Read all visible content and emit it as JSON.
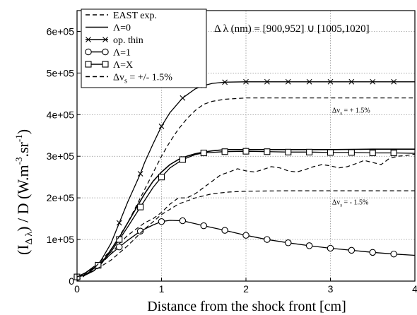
{
  "chart_data": {
    "type": "line",
    "xlabel": "Distance from the shock front [cm]",
    "ylabel": {
      "main": "(I",
      "sub": "Δ λ",
      "mid": ") / D   (W.m",
      "sup1": "-3",
      "mid2": ".sr",
      "sup2": "-1",
      "end": ")"
    },
    "xlim": [
      0,
      4
    ],
    "ylim": [
      0,
      650000
    ],
    "x_ticks": [
      0,
      1,
      2,
      3,
      4
    ],
    "x_tick_labels": [
      "0",
      "1",
      "2",
      "3",
      "4"
    ],
    "y_ticks": [
      0,
      100000,
      200000,
      300000,
      400000,
      500000,
      600000
    ],
    "y_tick_labels": [
      "0",
      "1e+05",
      "2e+05",
      "3e+05",
      "4e+05",
      "5e+05",
      "6e+05"
    ],
    "grid": true,
    "legend_position": "top-left",
    "wavelength_annotation": {
      "prefix": "Δ λ (nm) = [900,952] ∪ [1005,1020]"
    },
    "band_annotations": [
      {
        "text": "Δv",
        "sub": "s",
        "rest": " = + 1.5%",
        "x": 3.02,
        "y": 405000
      },
      {
        "text": "Δv",
        "sub": "s",
        "rest": " = - 1.5%",
        "x": 3.02,
        "y": 184000
      }
    ],
    "legend": [
      {
        "label": "EAST exp.",
        "style": "dash",
        "marker": "none"
      },
      {
        "label": "Λ=0",
        "style": "solid",
        "marker": "none"
      },
      {
        "label": "op. thin",
        "style": "solid",
        "marker": "x"
      },
      {
        "label": "Λ=1",
        "style": "solid",
        "marker": "circle"
      },
      {
        "label": "Λ=X",
        "style": "solid",
        "marker": "square"
      },
      {
        "label": "Δv",
        "label_sub": "s",
        "label_rest": " =  +/-  1.5%",
        "style": "dash",
        "marker": "none"
      }
    ],
    "series": [
      {
        "name": "EAST exp.",
        "style": "dash",
        "width": 1.2,
        "points": [
          [
            0,
            0
          ],
          [
            0.1,
            15000
          ],
          [
            0.2,
            30000
          ],
          [
            0.3,
            45000
          ],
          [
            0.4,
            65000
          ],
          [
            0.5,
            90000
          ],
          [
            0.6,
            110000
          ],
          [
            0.7,
            125000
          ],
          [
            0.8,
            140000
          ],
          [
            0.9,
            150000
          ],
          [
            1.0,
            165000
          ],
          [
            1.1,
            185000
          ],
          [
            1.2,
            200000
          ],
          [
            1.3,
            200000
          ],
          [
            1.4,
            210000
          ],
          [
            1.5,
            225000
          ],
          [
            1.6,
            240000
          ],
          [
            1.7,
            255000
          ],
          [
            1.8,
            262000
          ],
          [
            1.9,
            270000
          ],
          [
            2.0,
            265000
          ],
          [
            2.1,
            262000
          ],
          [
            2.2,
            268000
          ],
          [
            2.3,
            275000
          ],
          [
            2.4,
            272000
          ],
          [
            2.5,
            265000
          ],
          [
            2.6,
            262000
          ],
          [
            2.7,
            268000
          ],
          [
            2.8,
            275000
          ],
          [
            2.9,
            280000
          ],
          [
            3.0,
            277000
          ],
          [
            3.1,
            272000
          ],
          [
            3.2,
            275000
          ],
          [
            3.3,
            282000
          ],
          [
            3.4,
            290000
          ],
          [
            3.5,
            285000
          ],
          [
            3.6,
            280000
          ],
          [
            3.7,
            295000
          ],
          [
            3.8,
            300000
          ],
          [
            3.9,
            302000
          ],
          [
            4.0,
            305000
          ]
        ]
      },
      {
        "name": "Λ=0",
        "style": "solid",
        "width": 1.6,
        "marker": "none",
        "points": [
          [
            0,
            10000
          ],
          [
            0.1,
            15000
          ],
          [
            0.2,
            25000
          ],
          [
            0.3,
            45000
          ],
          [
            0.4,
            75000
          ],
          [
            0.5,
            105000
          ],
          [
            0.6,
            140000
          ],
          [
            0.7,
            175000
          ],
          [
            0.8,
            210000
          ],
          [
            0.9,
            240000
          ],
          [
            1.0,
            262000
          ],
          [
            1.1,
            280000
          ],
          [
            1.2,
            292000
          ],
          [
            1.3,
            300000
          ],
          [
            1.4,
            306000
          ],
          [
            1.5,
            310000
          ],
          [
            1.6,
            313000
          ],
          [
            1.7,
            315000
          ],
          [
            1.8,
            316000
          ],
          [
            2.0,
            316000
          ],
          [
            2.5,
            316000
          ],
          [
            3.0,
            316000
          ],
          [
            3.5,
            317000
          ],
          [
            4.0,
            317000
          ]
        ]
      },
      {
        "name": "op. thin",
        "style": "solid",
        "width": 1.3,
        "marker": "x",
        "marker_every": 0.25,
        "points": [
          [
            0,
            10000
          ],
          [
            0.1,
            20000
          ],
          [
            0.2,
            35000
          ],
          [
            0.25,
            40000
          ],
          [
            0.3,
            55000
          ],
          [
            0.4,
            90000
          ],
          [
            0.5,
            140000
          ],
          [
            0.6,
            190000
          ],
          [
            0.7,
            235000
          ],
          [
            0.75,
            258000
          ],
          [
            0.8,
            285000
          ],
          [
            0.9,
            330000
          ],
          [
            1.0,
            372000
          ],
          [
            1.1,
            405000
          ],
          [
            1.25,
            440000
          ],
          [
            1.4,
            462000
          ],
          [
            1.5,
            470000
          ],
          [
            1.6,
            475000
          ],
          [
            1.75,
            478000
          ],
          [
            2.0,
            479000
          ],
          [
            2.5,
            479000
          ],
          [
            3.0,
            479000
          ],
          [
            3.5,
            479000
          ],
          [
            4.0,
            479000
          ]
        ]
      },
      {
        "name": "Λ=1",
        "style": "solid",
        "width": 1.3,
        "marker": "circle",
        "marker_every": 0.25,
        "points": [
          [
            0,
            10000
          ],
          [
            0.1,
            20000
          ],
          [
            0.25,
            38000
          ],
          [
            0.4,
            65000
          ],
          [
            0.5,
            82000
          ],
          [
            0.6,
            98000
          ],
          [
            0.75,
            120000
          ],
          [
            0.9,
            135000
          ],
          [
            1.0,
            143000
          ],
          [
            1.1,
            146000
          ],
          [
            1.25,
            145000
          ],
          [
            1.4,
            138000
          ],
          [
            1.5,
            133000
          ],
          [
            1.75,
            122000
          ],
          [
            2.0,
            110000
          ],
          [
            2.25,
            100000
          ],
          [
            2.5,
            92000
          ],
          [
            2.75,
            85000
          ],
          [
            3.0,
            79000
          ],
          [
            3.25,
            74000
          ],
          [
            3.5,
            69000
          ],
          [
            3.75,
            65000
          ],
          [
            4.0,
            62000
          ]
        ]
      },
      {
        "name": "Λ=X",
        "style": "solid",
        "width": 1.3,
        "marker": "square",
        "marker_every": 0.25,
        "points": [
          [
            0,
            10000
          ],
          [
            0.1,
            15000
          ],
          [
            0.25,
            38000
          ],
          [
            0.4,
            70000
          ],
          [
            0.5,
            100000
          ],
          [
            0.6,
            130000
          ],
          [
            0.75,
            178000
          ],
          [
            0.9,
            225000
          ],
          [
            1.0,
            250000
          ],
          [
            1.1,
            272000
          ],
          [
            1.25,
            292000
          ],
          [
            1.4,
            304000
          ],
          [
            1.5,
            308000
          ],
          [
            1.75,
            311000
          ],
          [
            2.0,
            312000
          ],
          [
            2.25,
            311000
          ],
          [
            2.5,
            310000
          ],
          [
            2.75,
            310000
          ],
          [
            3.0,
            309000
          ],
          [
            3.25,
            309000
          ],
          [
            3.5,
            308000
          ],
          [
            3.75,
            308000
          ],
          [
            4.0,
            307000
          ]
        ]
      },
      {
        "name": "Δvs = + 1.5%",
        "style": "dash",
        "width": 1.2,
        "marker": "none",
        "points": [
          [
            0,
            10000
          ],
          [
            0.2,
            30000
          ],
          [
            0.4,
            75000
          ],
          [
            0.6,
            140000
          ],
          [
            0.8,
            220000
          ],
          [
            1.0,
            300000
          ],
          [
            1.1,
            335000
          ],
          [
            1.2,
            365000
          ],
          [
            1.3,
            390000
          ],
          [
            1.4,
            410000
          ],
          [
            1.5,
            425000
          ],
          [
            1.6,
            432000
          ],
          [
            1.75,
            437000
          ],
          [
            2.0,
            440000
          ],
          [
            2.5,
            440000
          ],
          [
            3.0,
            440000
          ],
          [
            3.5,
            440000
          ],
          [
            4.0,
            440000
          ]
        ]
      },
      {
        "name": "Δvs = - 1.5%",
        "style": "dash",
        "width": 1.2,
        "marker": "none",
        "points": [
          [
            0,
            10000
          ],
          [
            0.2,
            25000
          ],
          [
            0.4,
            50000
          ],
          [
            0.6,
            85000
          ],
          [
            0.8,
            125000
          ],
          [
            1.0,
            160000
          ],
          [
            1.2,
            185000
          ],
          [
            1.4,
            200000
          ],
          [
            1.6,
            210000
          ],
          [
            1.8,
            214000
          ],
          [
            2.0,
            216000
          ],
          [
            2.5,
            217000
          ],
          [
            3.0,
            217000
          ],
          [
            3.5,
            217000
          ],
          [
            4.0,
            217000
          ]
        ]
      }
    ]
  }
}
